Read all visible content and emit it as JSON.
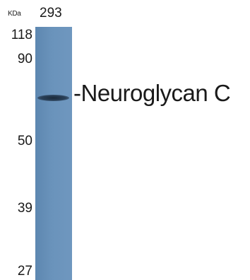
{
  "unit": "KDa",
  "lane": "293",
  "markers": [
    "118",
    "90",
    "50",
    "39",
    "27"
  ],
  "protein_label": "-Neuroglycan C",
  "colors": {
    "membrane": "#6a93bb",
    "band": "#1f3045"
  }
}
